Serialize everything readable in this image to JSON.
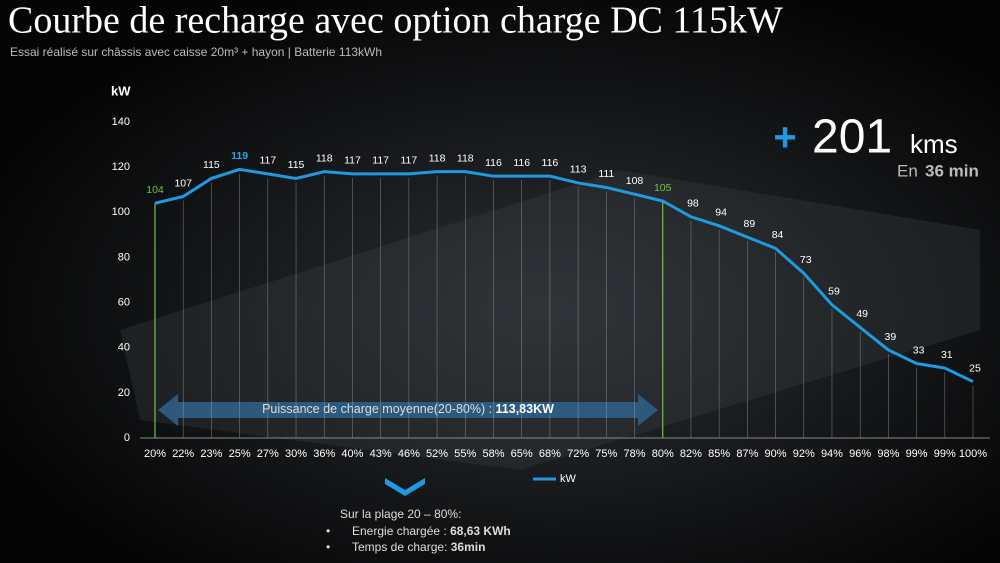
{
  "chart_data": {
    "type": "line",
    "title": "Courbe de recharge avec option charge DC 115kW",
    "subtitle": "Essai réalisé sur châssis avec caisse 20m³ + hayon | Batterie 113kWh",
    "y_label": "kW",
    "categories": [
      "20%",
      "22%",
      "23%",
      "25%",
      "27%",
      "30%",
      "36%",
      "40%",
      "43%",
      "46%",
      "52%",
      "55%",
      "58%",
      "65%",
      "68%",
      "72%",
      "75%",
      "78%",
      "80%",
      "82%",
      "85%",
      "87%",
      "90%",
      "92%",
      "94%",
      "96%",
      "98%",
      "99%",
      "99%",
      "100%"
    ],
    "series": [
      {
        "name": "kW",
        "color": "#1e9be0",
        "values": [
          104,
          107,
          115,
          119,
          117,
          115,
          118,
          117,
          117,
          117,
          118,
          118,
          116,
          116,
          116,
          113,
          111,
          108,
          105,
          98,
          94,
          89,
          84,
          73,
          59,
          49,
          39,
          33,
          31,
          25
        ]
      }
    ],
    "ylim": [
      0,
      140
    ],
    "yticks": [
      0,
      20,
      40,
      60,
      80,
      100,
      120,
      140
    ],
    "range_markers": [
      "20%",
      "80%"
    ],
    "marker_color": "#6fc24a",
    "max_label_color": "#2aa3e8",
    "legend": "bottom",
    "average_text": "Puissance de charge moyenne(20-80%) : ",
    "average_value": "113,83KW",
    "range_stats": {
      "heading": "Sur la plage 20 – 80%:",
      "energy_label": "Energie chargée : ",
      "energy_value": "68,63 KWh",
      "time_label": "Temps de charge: ",
      "time_value": "36min"
    },
    "range_result": {
      "distance": "201",
      "distance_unit": "kms",
      "time_prefix": "En",
      "time_value": "36 min"
    }
  }
}
